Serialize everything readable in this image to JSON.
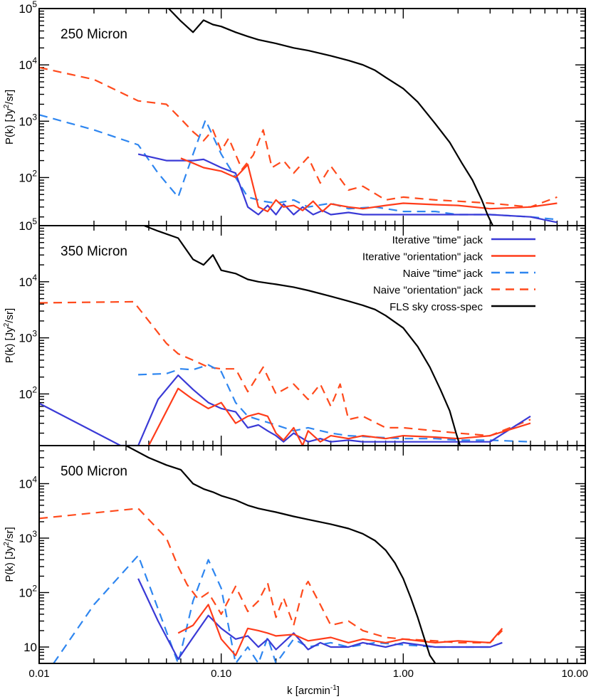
{
  "chart_data": {
    "type": "line",
    "xlabel_main": "k [arcmin",
    "xlabel_sup": "-1",
    "xlabel_tail": "]",
    "xscale": "log",
    "xlim": [
      0.01,
      10
    ],
    "x_ticks": [
      {
        "value": 0.01,
        "label": "0.01"
      },
      {
        "value": 0.1,
        "label": "0.10"
      },
      {
        "value": 1,
        "label": "1.00"
      },
      {
        "value": 10,
        "label": "10.00"
      }
    ],
    "legend": {
      "placement": "top-right of middle panel",
      "entries": [
        {
          "label": "Iterative \"time\" jack",
          "color": "#3a3ad6",
          "dash": "solid"
        },
        {
          "label": "Iterative \"orientation\" jack",
          "color": "#ff3c1a",
          "dash": "solid"
        },
        {
          "label": "Naive \"time\" jack",
          "color": "#2e86f0",
          "dash": "dashed"
        },
        {
          "label": "Naive \"orientation\" jack",
          "color": "#ff4a1c",
          "dash": "dashed"
        },
        {
          "label": "FLS sky cross-spec",
          "color": "#000000",
          "dash": "solid"
        }
      ]
    },
    "panels": [
      {
        "title": "250 Micron",
        "ylabel": "P(k) [Jy",
        "ylabel_sup": "2",
        "ylabel_tail": "/sr]",
        "yscale": "log",
        "ylim": [
          14,
          100000
        ],
        "y_ticks": [
          {
            "value": 100,
            "base": "10",
            "exp": "2"
          },
          {
            "value": 1000,
            "base": "10",
            "exp": "3"
          },
          {
            "value": 10000,
            "base": "10",
            "exp": "4"
          },
          {
            "value": 100000,
            "base": "10",
            "exp": "5"
          }
        ],
        "series": [
          {
            "name": "Naive \"orientation\" jack",
            "k": [
              0.01,
              0.02,
              0.035,
              0.05,
              0.06,
              0.07,
              0.08,
              0.09,
              0.1,
              0.11,
              0.13,
              0.15,
              0.17,
              0.19,
              0.22,
              0.25,
              0.3,
              0.35,
              0.4,
              0.5,
              0.6,
              0.8,
              1.0,
              1.5,
              2.0,
              3.0,
              5.0,
              7.0
            ],
            "p": [
              9000,
              5500,
              2300,
              2000,
              1100,
              650,
              450,
              700,
              300,
              500,
              140,
              250,
              700,
              150,
              200,
              120,
              230,
              80,
              160,
              60,
              70,
              40,
              45,
              40,
              38,
              35,
              30,
              45
            ]
          },
          {
            "name": "Naive \"time\" jack",
            "k": [
              0.01,
              0.02,
              0.035,
              0.045,
              0.058,
              0.07,
              0.082,
              0.1,
              0.12,
              0.14,
              0.17,
              0.2,
              0.25,
              0.3,
              0.4,
              0.5,
              0.7,
              1.0,
              1.5,
              2.0,
              3.0,
              5.0,
              7.0
            ],
            "p": [
              1300,
              700,
              380,
              120,
              45,
              260,
              1050,
              260,
              100,
              45,
              38,
              35,
              40,
              30,
              35,
              28,
              30,
              25,
              25,
              22,
              22,
              20,
              18
            ]
          },
          {
            "name": "Iterative \"time\" jack",
            "k": [
              0.035,
              0.05,
              0.06,
              0.07,
              0.08,
              0.1,
              0.12,
              0.14,
              0.16,
              0.18,
              0.2,
              0.22,
              0.25,
              0.28,
              0.32,
              0.36,
              0.4,
              0.5,
              0.6,
              0.8,
              1.0,
              1.5,
              2.0,
              3.0,
              5.0,
              7.0
            ],
            "p": [
              260,
              200,
              200,
              200,
              210,
              150,
              120,
              30,
              22,
              32,
              22,
              34,
              22,
              30,
              22,
              26,
              22,
              24,
              22,
              22,
              22,
              22,
              22,
              22,
              20,
              16
            ]
          },
          {
            "name": "Iterative \"orientation\" jack",
            "k": [
              0.06,
              0.07,
              0.08,
              0.1,
              0.12,
              0.14,
              0.16,
              0.18,
              0.2,
              0.22,
              0.25,
              0.28,
              0.32,
              0.36,
              0.4,
              0.5,
              0.6,
              0.8,
              1.0,
              1.5,
              2.0,
              3.0,
              5.0,
              7.0
            ],
            "p": [
              220,
              180,
              150,
              130,
              100,
              170,
              30,
              25,
              40,
              30,
              32,
              26,
              38,
              25,
              34,
              30,
              28,
              32,
              35,
              33,
              32,
              28,
              30,
              35
            ]
          },
          {
            "name": "FLS sky cross-spec",
            "k": [
              0.05,
              0.06,
              0.07,
              0.08,
              0.09,
              0.1,
              0.12,
              0.14,
              0.16,
              0.2,
              0.25,
              0.3,
              0.4,
              0.5,
              0.6,
              0.7,
              0.8,
              1.0,
              1.2,
              1.5,
              1.8,
              2.1,
              2.4,
              2.7,
              2.9,
              3.1
            ],
            "p": [
              110000,
              60000,
              38000,
              62000,
              52000,
              48000,
              38000,
              32000,
              28000,
              24000,
              20000,
              18000,
              14500,
              12000,
              10000,
              8000,
              6000,
              3800,
              2200,
              900,
              420,
              180,
              90,
              40,
              22,
              14
            ]
          }
        ]
      },
      {
        "title": "350 Micron",
        "ylabel": "P(k) [Jy",
        "ylabel_sup": "2",
        "ylabel_tail": "/sr]",
        "yscale": "log",
        "ylim": [
          12,
          100000
        ],
        "y_ticks": [
          {
            "value": 100,
            "base": "10",
            "exp": "2"
          },
          {
            "value": 1000,
            "base": "10",
            "exp": "3"
          },
          {
            "value": 10000,
            "base": "10",
            "exp": "4"
          },
          {
            "value": 100000,
            "base": "10",
            "exp": "5"
          }
        ],
        "series": [
          {
            "name": "Naive \"orientation\" jack",
            "k": [
              0.01,
              0.033,
              0.05,
              0.058,
              0.07,
              0.085,
              0.1,
              0.12,
              0.14,
              0.17,
              0.2,
              0.25,
              0.3,
              0.35,
              0.4,
              0.45,
              0.5,
              0.6,
              0.8,
              1.0,
              1.5,
              2.0,
              3.0,
              5.0
            ],
            "p": [
              4200,
              4400,
              800,
              520,
              400,
              300,
              280,
              280,
              110,
              300,
              100,
              150,
              80,
              150,
              60,
              150,
              35,
              40,
              25,
              25,
              22,
              20,
              18,
              35
            ]
          },
          {
            "name": "Naive \"time\" jack",
            "k": [
              0.035,
              0.05,
              0.06,
              0.07,
              0.085,
              0.1,
              0.12,
              0.14,
              0.16,
              0.2,
              0.25,
              0.3,
              0.4,
              0.5,
              0.7,
              1.0,
              1.5,
              2.0,
              3.0,
              5.0
            ],
            "p": [
              220,
              230,
              280,
              270,
              330,
              250,
              70,
              40,
              35,
              28,
              22,
              25,
              20,
              18,
              17,
              16,
              16,
              15,
              15,
              14
            ]
          },
          {
            "name": "Iterative \"time\" jack",
            "k": [
              0.01,
              0.028,
              0.035,
              0.045,
              0.058,
              0.07,
              0.085,
              0.1,
              0.12,
              0.14,
              0.16,
              0.18,
              0.2,
              0.22,
              0.25,
              0.3,
              0.35,
              0.4,
              0.5,
              0.6,
              0.8,
              1.0,
              1.5,
              2.0,
              3.0,
              5.0
            ],
            "p": [
              68,
              12,
              12,
              80,
              215,
              120,
              70,
              55,
              48,
              25,
              28,
              22,
              18,
              14,
              20,
              14,
              16,
              14,
              15,
              14,
              14,
              14,
              14,
              14,
              14,
              40
            ]
          },
          {
            "name": "Iterative \"orientation\" jack",
            "k": [
              0.04,
              0.058,
              0.07,
              0.085,
              0.1,
              0.12,
              0.14,
              0.16,
              0.18,
              0.2,
              0.22,
              0.25,
              0.28,
              0.3,
              0.35,
              0.4,
              0.5,
              0.6,
              0.8,
              1.0,
              1.5,
              2.0,
              3.0,
              5.0
            ],
            "p": [
              12,
              125,
              80,
              55,
              70,
              30,
              40,
              45,
              40,
              20,
              15,
              25,
              12,
              22,
              14,
              18,
              16,
              18,
              16,
              18,
              17,
              16,
              18,
              30
            ]
          },
          {
            "name": "FLS sky cross-spec",
            "k": [
              0.035,
              0.045,
              0.058,
              0.07,
              0.08,
              0.09,
              0.1,
              0.12,
              0.14,
              0.16,
              0.2,
              0.25,
              0.3,
              0.4,
              0.5,
              0.6,
              0.7,
              0.8,
              1.0,
              1.2,
              1.4,
              1.6,
              1.8,
              1.95,
              2.05
            ],
            "p": [
              110000,
              80000,
              60000,
              25000,
              20000,
              30000,
              16000,
              14000,
              11000,
              10000,
              9000,
              8000,
              7000,
              5500,
              4500,
              3800,
              3200,
              2500,
              1500,
              700,
              300,
              120,
              50,
              20,
              12
            ]
          }
        ]
      },
      {
        "title": "500 Micron",
        "ylabel": "P(k) [Jy",
        "ylabel_sup": "2",
        "ylabel_tail": "/sr]",
        "yscale": "log",
        "ylim": [
          5,
          50000
        ],
        "y_ticks": [
          {
            "value": 10,
            "base": "10",
            "exp": ""
          },
          {
            "value": 100,
            "base": "10",
            "exp": "2"
          },
          {
            "value": 1000,
            "base": "10",
            "exp": "3"
          },
          {
            "value": 10000,
            "base": "10",
            "exp": "4"
          }
        ],
        "series": [
          {
            "name": "Naive \"orientation\" jack",
            "k": [
              0.01,
              0.035,
              0.05,
              0.058,
              0.065,
              0.075,
              0.085,
              0.1,
              0.12,
              0.14,
              0.16,
              0.18,
              0.2,
              0.22,
              0.25,
              0.28,
              0.3,
              0.35,
              0.4,
              0.5,
              0.6,
              0.8,
              1.0,
              1.5,
              2.0,
              3.0,
              3.5
            ],
            "p": [
              2300,
              3500,
              1000,
              300,
              140,
              75,
              100,
              40,
              130,
              45,
              70,
              150,
              35,
              80,
              25,
              110,
              160,
              60,
              25,
              30,
              20,
              15,
              14,
              13,
              12,
              12,
              20
            ]
          },
          {
            "name": "Naive \"time\" jack",
            "k": [
              0.012,
              0.02,
              0.035,
              0.045,
              0.058,
              0.07,
              0.085,
              0.1,
              0.12,
              0.14,
              0.16,
              0.18,
              0.2,
              0.25,
              0.3,
              0.4,
              0.5,
              0.7,
              1.0,
              1.5,
              2.0,
              3.0,
              3.5
            ],
            "p": [
              5,
              60,
              480,
              50,
              5,
              70,
              400,
              120,
              5,
              10,
              5,
              15,
              5,
              14,
              10,
              12,
              10,
              12,
              11,
              10,
              10,
              10,
              12
            ]
          },
          {
            "name": "Iterative \"time\" jack",
            "k": [
              0.035,
              0.045,
              0.058,
              0.07,
              0.085,
              0.1,
              0.12,
              0.14,
              0.16,
              0.18,
              0.2,
              0.25,
              0.3,
              0.35,
              0.4,
              0.5,
              0.6,
              0.8,
              1.0,
              1.5,
              2.0,
              3.0,
              3.5
            ],
            "p": [
              180,
              30,
              6,
              15,
              38,
              22,
              14,
              16,
              10,
              14,
              9,
              18,
              9,
              12,
              10,
              10,
              12,
              10,
              12,
              10,
              10,
              10,
              12
            ]
          },
          {
            "name": "Iterative \"orientation\" jack",
            "k": [
              0.058,
              0.07,
              0.085,
              0.1,
              0.12,
              0.14,
              0.16,
              0.18,
              0.2,
              0.25,
              0.3,
              0.4,
              0.5,
              0.6,
              0.8,
              1.0,
              1.5,
              2.0,
              3.0,
              3.5
            ],
            "p": [
              18,
              25,
              60,
              14,
              7,
              22,
              20,
              18,
              16,
              17,
              13,
              15,
              12,
              14,
              12,
              14,
              12,
              13,
              12,
              22
            ]
          },
          {
            "name": "FLS sky cross-spec",
            "k": [
              0.03,
              0.04,
              0.05,
              0.06,
              0.07,
              0.08,
              0.09,
              0.1,
              0.12,
              0.14,
              0.16,
              0.2,
              0.25,
              0.3,
              0.4,
              0.5,
              0.6,
              0.7,
              0.8,
              0.9,
              1.0,
              1.1,
              1.2,
              1.3,
              1.4,
              1.5
            ],
            "p": [
              50000,
              30000,
              22000,
              18000,
              10000,
              8000,
              7000,
              6000,
              5000,
              4000,
              3500,
              3000,
              2500,
              2200,
              1800,
              1500,
              1200,
              900,
              600,
              350,
              180,
              80,
              35,
              15,
              7,
              5
            ]
          }
        ]
      }
    ]
  }
}
